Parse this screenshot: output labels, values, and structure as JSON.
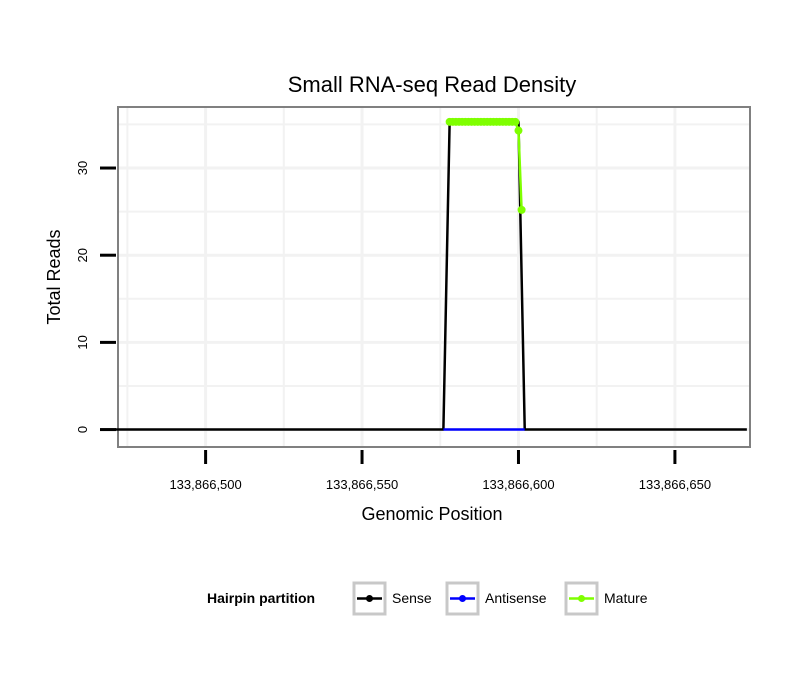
{
  "chart_data": {
    "type": "line",
    "title": "Small RNA-seq Read Density",
    "xlabel": "Genomic Position",
    "ylabel": "Total Reads",
    "xlim": [
      133866472,
      133866674
    ],
    "ylim": [
      -2,
      37
    ],
    "x_ticks": [
      133866500,
      133866550,
      133866600,
      133866650
    ],
    "x_tick_labels": [
      "133,866,500",
      "133,866,550",
      "133,866,600",
      "133,866,650"
    ],
    "y_ticks": [
      0,
      10,
      20,
      30
    ],
    "y_tick_labels": [
      "0",
      "10",
      "20",
      "30"
    ],
    "grid": true,
    "legend": {
      "title": "Hairpin partition",
      "position": "bottom",
      "entries": [
        {
          "label": "Sense",
          "color": "#000000"
        },
        {
          "label": "Antisense",
          "color": "#0000ff"
        },
        {
          "label": "Mature",
          "color": "#7fff00"
        }
      ]
    },
    "series": [
      {
        "name": "Sense",
        "color": "#000000",
        "x": [
          133866471,
          133866576,
          133866578,
          133866600,
          133866602,
          133866673
        ],
        "y": [
          0,
          0,
          35.3,
          35.3,
          0,
          0
        ],
        "points": false
      },
      {
        "name": "Antisense",
        "color": "#0000ff",
        "x": [
          133866576,
          133866602
        ],
        "y": [
          0,
          0
        ],
        "points": false
      },
      {
        "name": "Mature",
        "color": "#7fff00",
        "x": [
          133866578,
          133866579,
          133866580,
          133866581,
          133866582,
          133866583,
          133866584,
          133866585,
          133866586,
          133866587,
          133866588,
          133866589,
          133866590,
          133866591,
          133866592,
          133866593,
          133866594,
          133866595,
          133866596,
          133866597,
          133866598,
          133866599,
          133866600,
          133866601
        ],
        "y": [
          35.3,
          35.3,
          35.3,
          35.3,
          35.3,
          35.3,
          35.3,
          35.3,
          35.3,
          35.3,
          35.3,
          35.3,
          35.3,
          35.3,
          35.3,
          35.3,
          35.3,
          35.3,
          35.3,
          35.3,
          35.3,
          35.3,
          34.3,
          25.2
        ],
        "points": true
      }
    ]
  }
}
